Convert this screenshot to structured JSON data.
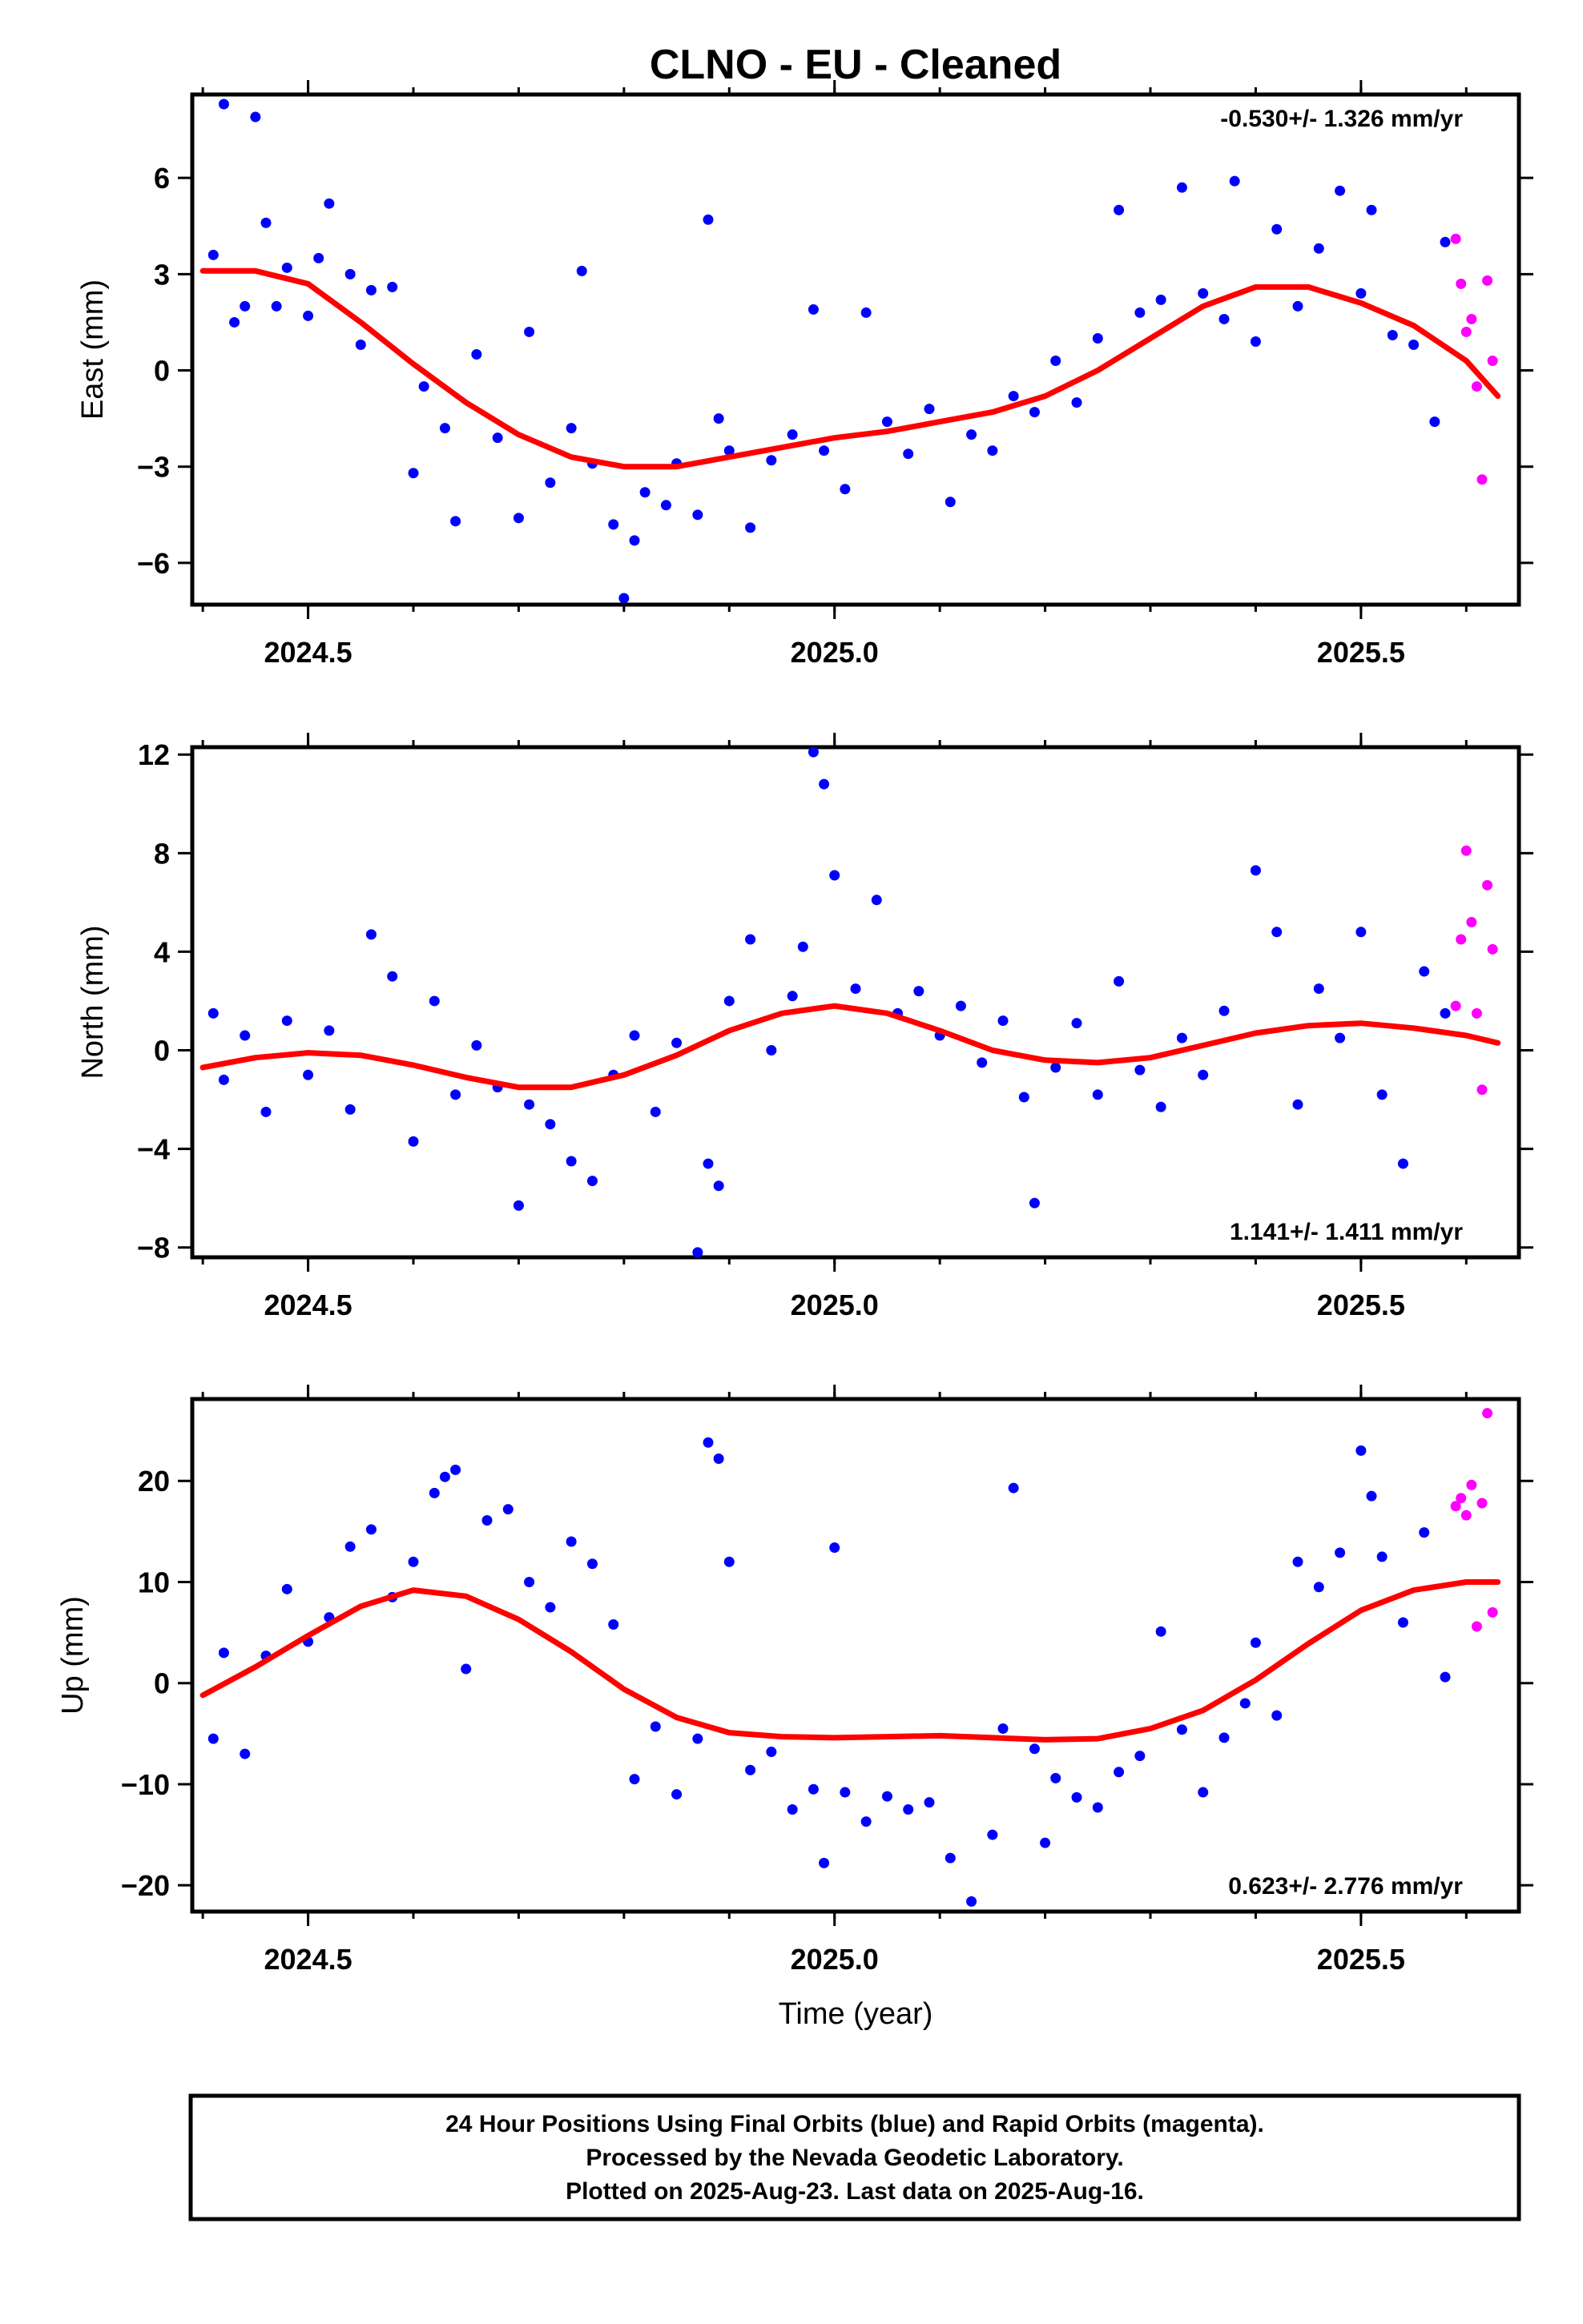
{
  "title": "CLNO  - EU - Cleaned",
  "colors": {
    "final": "#0000ff",
    "rapid": "#ff00ff",
    "fit": "#ff0000",
    "frame": "#000000"
  },
  "chart_data": [
    {
      "type": "scatter",
      "ylabel": "East (mm)",
      "xlabel": "",
      "xlim": [
        2024.39,
        2025.65
      ],
      "ylim": [
        -7.3,
        8.6
      ],
      "yticks": [
        "6",
        "3",
        "0",
        "−3",
        "−6"
      ],
      "ytick_values": [
        6,
        3,
        0,
        -3,
        -6
      ],
      "xticks": [
        "2024.5",
        "2025.0",
        "2025.5"
      ],
      "xtick_values": [
        2024.5,
        2025.0,
        2025.5
      ],
      "rate": "-0.530+/- 1.326 mm/yr",
      "rate_position": "top-right",
      "fit_line": {
        "x": [
          2024.4,
          2024.45,
          2024.5,
          2024.55,
          2024.6,
          2024.65,
          2024.7,
          2024.75,
          2024.8,
          2024.85,
          2024.9,
          2024.95,
          2025.0,
          2025.05,
          2025.1,
          2025.15,
          2025.2,
          2025.25,
          2025.3,
          2025.35,
          2025.4,
          2025.45,
          2025.5,
          2025.55,
          2025.6,
          2025.63
        ],
        "y": [
          3.1,
          3.1,
          2.7,
          1.5,
          0.2,
          -1.0,
          -2.0,
          -2.7,
          -3.0,
          -3.0,
          -2.7,
          -2.4,
          -2.1,
          -1.9,
          -1.6,
          -1.3,
          -0.8,
          0.0,
          1.0,
          2.0,
          2.6,
          2.6,
          2.1,
          1.4,
          0.3,
          -0.8
        ]
      },
      "series": [
        {
          "name": "Final Orbits",
          "x": [
            2024.41,
            2024.42,
            2024.43,
            2024.44,
            2024.45,
            2024.46,
            2024.47,
            2024.48,
            2024.5,
            2024.51,
            2024.52,
            2024.54,
            2024.55,
            2024.56,
            2024.58,
            2024.6,
            2024.61,
            2024.63,
            2024.64,
            2024.66,
            2024.68,
            2024.7,
            2024.71,
            2024.73,
            2024.75,
            2024.76,
            2024.77,
            2024.79,
            2024.8,
            2024.81,
            2024.82,
            2024.84,
            2024.85,
            2024.87,
            2024.88,
            2024.89,
            2024.9,
            2024.92,
            2024.94,
            2024.96,
            2024.98,
            2024.99,
            2025.01,
            2025.03,
            2025.05,
            2025.07,
            2025.09,
            2025.11,
            2025.13,
            2025.15,
            2025.17,
            2025.19,
            2025.21,
            2025.23,
            2025.25,
            2025.27,
            2025.29,
            2025.31,
            2025.33,
            2025.35,
            2025.37,
            2025.38,
            2025.4,
            2025.42,
            2025.44,
            2025.46,
            2025.48,
            2025.5,
            2025.51,
            2025.53,
            2025.55,
            2025.57,
            2025.58
          ],
          "y": [
            3.6,
            8.3,
            1.5,
            2.0,
            7.9,
            4.6,
            2.0,
            3.2,
            1.7,
            3.5,
            5.2,
            3.0,
            0.8,
            2.5,
            2.6,
            -3.2,
            -0.5,
            -1.8,
            -4.7,
            0.5,
            -2.1,
            -4.6,
            1.2,
            -3.5,
            -1.8,
            3.1,
            -2.9,
            -4.8,
            -7.1,
            -5.3,
            -3.8,
            -4.2,
            -2.9,
            -4.5,
            4.7,
            -1.5,
            -2.5,
            -4.9,
            -2.8,
            -2.0,
            1.9,
            -2.5,
            -3.7,
            1.8,
            -1.6,
            -2.6,
            -1.2,
            -4.1,
            -2.0,
            -2.5,
            -0.8,
            -1.3,
            0.3,
            -1.0,
            1.0,
            5.0,
            1.8,
            2.2,
            5.7,
            2.4,
            1.6,
            5.9,
            0.9,
            4.4,
            2.0,
            3.8,
            5.6,
            2.4,
            5.0,
            1.1,
            0.8,
            -1.6,
            4.0
          ]
        },
        {
          "name": "Rapid Orbits",
          "x": [
            2025.59,
            2025.595,
            2025.6,
            2025.605,
            2025.61,
            2025.615,
            2025.62,
            2025.625
          ],
          "y": [
            4.1,
            2.7,
            1.2,
            1.6,
            -0.5,
            -3.4,
            2.8,
            0.3
          ]
        }
      ]
    },
    {
      "type": "scatter",
      "ylabel": "North (mm)",
      "xlabel": "",
      "xlim": [
        2024.39,
        2025.65
      ],
      "ylim": [
        -8.4,
        12.3
      ],
      "yticks": [
        "12",
        "8",
        "4",
        "0",
        "−4",
        "−8"
      ],
      "ytick_values": [
        12,
        8,
        4,
        0,
        -4,
        -8
      ],
      "xticks": [
        "2024.5",
        "2025.0",
        "2025.5"
      ],
      "xtick_values": [
        2024.5,
        2025.0,
        2025.5
      ],
      "rate": "1.141+/- 1.411 mm/yr",
      "rate_position": "bottom-right",
      "fit_line": {
        "x": [
          2024.4,
          2024.45,
          2024.5,
          2024.55,
          2024.6,
          2024.65,
          2024.7,
          2024.75,
          2024.8,
          2024.85,
          2024.9,
          2024.95,
          2025.0,
          2025.05,
          2025.1,
          2025.15,
          2025.2,
          2025.25,
          2025.3,
          2025.35,
          2025.4,
          2025.45,
          2025.5,
          2025.55,
          2025.6,
          2025.63
        ],
        "y": [
          -0.7,
          -0.3,
          -0.1,
          -0.2,
          -0.6,
          -1.1,
          -1.5,
          -1.5,
          -1.0,
          -0.2,
          0.8,
          1.5,
          1.8,
          1.5,
          0.8,
          0.0,
          -0.4,
          -0.5,
          -0.3,
          0.2,
          0.7,
          1.0,
          1.1,
          0.9,
          0.6,
          0.3
        ]
      },
      "series": [
        {
          "name": "Final Orbits",
          "x": [
            2024.41,
            2024.42,
            2024.44,
            2024.46,
            2024.48,
            2024.5,
            2024.52,
            2024.54,
            2024.56,
            2024.58,
            2024.6,
            2024.62,
            2024.64,
            2024.66,
            2024.68,
            2024.7,
            2024.71,
            2024.73,
            2024.75,
            2024.77,
            2024.79,
            2024.81,
            2024.83,
            2024.85,
            2024.87,
            2024.88,
            2024.89,
            2024.9,
            2024.92,
            2024.94,
            2024.96,
            2024.97,
            2024.98,
            2024.99,
            2025.0,
            2025.02,
            2025.04,
            2025.06,
            2025.08,
            2025.1,
            2025.12,
            2025.14,
            2025.16,
            2025.18,
            2025.19,
            2025.21,
            2025.23,
            2025.25,
            2025.27,
            2025.29,
            2025.31,
            2025.33,
            2025.35,
            2025.37,
            2025.4,
            2025.42,
            2025.44,
            2025.46,
            2025.48,
            2025.5,
            2025.52,
            2025.54,
            2025.56,
            2025.58
          ],
          "y": [
            1.5,
            -1.2,
            0.6,
            -2.5,
            1.2,
            -1.0,
            0.8,
            -2.4,
            4.7,
            3.0,
            -3.7,
            2.0,
            -1.8,
            0.2,
            -1.5,
            -6.3,
            -2.2,
            -3.0,
            -4.5,
            -5.3,
            -1.0,
            0.6,
            -2.5,
            0.3,
            -8.2,
            -4.6,
            -5.5,
            2.0,
            4.5,
            0.0,
            2.2,
            4.2,
            12.1,
            10.8,
            7.1,
            2.5,
            6.1,
            1.5,
            2.4,
            0.6,
            1.8,
            -0.5,
            1.2,
            -1.9,
            -6.2,
            -0.7,
            1.1,
            -1.8,
            2.8,
            -0.8,
            -2.3,
            0.5,
            -1.0,
            1.6,
            7.3,
            4.8,
            -2.2,
            2.5,
            0.5,
            4.8,
            -1.8,
            -4.6,
            3.2,
            1.5
          ]
        },
        {
          "name": "Rapid Orbits",
          "x": [
            2025.59,
            2025.595,
            2025.6,
            2025.605,
            2025.61,
            2025.615,
            2025.62,
            2025.625
          ],
          "y": [
            1.8,
            4.5,
            8.1,
            5.2,
            1.5,
            -1.6,
            6.7,
            4.1
          ]
        }
      ]
    },
    {
      "type": "scatter",
      "ylabel": "Up (mm)",
      "xlabel": "Time (year)",
      "xlim": [
        2024.39,
        2025.65
      ],
      "ylim": [
        -22.6,
        28.1
      ],
      "yticks": [
        "20",
        "10",
        "0",
        "−10",
        "−20"
      ],
      "ytick_values": [
        20,
        10,
        0,
        -10,
        -20
      ],
      "xticks": [
        "2024.5",
        "2025.0",
        "2025.5"
      ],
      "xtick_values": [
        2024.5,
        2025.0,
        2025.5
      ],
      "rate": "0.623+/- 2.776 mm/yr",
      "rate_position": "bottom-right",
      "fit_line": {
        "x": [
          2024.4,
          2024.45,
          2024.5,
          2024.55,
          2024.6,
          2024.65,
          2024.7,
          2024.75,
          2024.8,
          2024.85,
          2024.9,
          2024.95,
          2025.0,
          2025.05,
          2025.1,
          2025.15,
          2025.2,
          2025.25,
          2025.3,
          2025.35,
          2025.4,
          2025.45,
          2025.5,
          2025.55,
          2025.6,
          2025.63
        ],
        "y": [
          -1.2,
          1.6,
          4.7,
          7.6,
          9.2,
          8.6,
          6.3,
          3.1,
          -0.6,
          -3.4,
          -4.9,
          -5.3,
          -5.4,
          -5.3,
          -5.2,
          -5.4,
          -5.6,
          -5.5,
          -4.5,
          -2.7,
          0.3,
          3.9,
          7.2,
          9.2,
          10.0,
          10.0
        ]
      },
      "series": [
        {
          "name": "Final Orbits",
          "x": [
            2024.41,
            2024.42,
            2024.44,
            2024.46,
            2024.48,
            2024.5,
            2024.52,
            2024.54,
            2024.56,
            2024.58,
            2024.6,
            2024.62,
            2024.63,
            2024.64,
            2024.65,
            2024.67,
            2024.69,
            2024.71,
            2024.73,
            2024.75,
            2024.77,
            2024.79,
            2024.81,
            2024.83,
            2024.85,
            2024.87,
            2024.88,
            2024.89,
            2024.9,
            2024.92,
            2024.94,
            2024.96,
            2024.98,
            2024.99,
            2025.0,
            2025.01,
            2025.03,
            2025.05,
            2025.07,
            2025.09,
            2025.11,
            2025.13,
            2025.15,
            2025.16,
            2025.17,
            2025.19,
            2025.2,
            2025.21,
            2025.23,
            2025.25,
            2025.27,
            2025.29,
            2025.31,
            2025.33,
            2025.35,
            2025.37,
            2025.39,
            2025.4,
            2025.42,
            2025.44,
            2025.46,
            2025.48,
            2025.5,
            2025.51,
            2025.52,
            2025.54,
            2025.56,
            2025.58
          ],
          "y": [
            -5.5,
            3.0,
            -7.0,
            2.7,
            9.3,
            4.1,
            6.5,
            13.5,
            15.2,
            8.5,
            12.0,
            18.8,
            20.4,
            21.1,
            1.4,
            16.1,
            17.2,
            10.0,
            7.5,
            14.0,
            11.8,
            5.8,
            -9.5,
            -4.3,
            -11.0,
            -5.5,
            23.8,
            22.2,
            12.0,
            -8.6,
            -6.8,
            -12.5,
            -10.5,
            -17.8,
            13.4,
            -10.8,
            -13.7,
            -11.2,
            -12.5,
            -11.8,
            -17.3,
            -21.6,
            -15.0,
            -4.5,
            19.3,
            -6.5,
            -15.8,
            -9.4,
            -11.3,
            -12.3,
            -8.8,
            -7.2,
            5.1,
            -4.6,
            -10.8,
            -5.4,
            -2.0,
            4.0,
            -3.2,
            12.0,
            9.5,
            12.9,
            23.0,
            18.5,
            12.5,
            6.0,
            14.9,
            0.6
          ]
        },
        {
          "name": "Rapid Orbits",
          "x": [
            2025.59,
            2025.595,
            2025.6,
            2025.605,
            2025.61,
            2025.615,
            2025.62,
            2025.625
          ],
          "y": [
            17.5,
            18.3,
            16.6,
            19.6,
            5.6,
            17.8,
            26.7,
            7.0
          ]
        }
      ]
    }
  ],
  "footer": {
    "line1": "24 Hour Positions Using Final Orbits (blue) and Rapid Orbits (magenta).",
    "line2": "Processed by the Nevada Geodetic Laboratory.",
    "line3": "Plotted on 2025-Aug-23. Last data on 2025-Aug-16."
  }
}
